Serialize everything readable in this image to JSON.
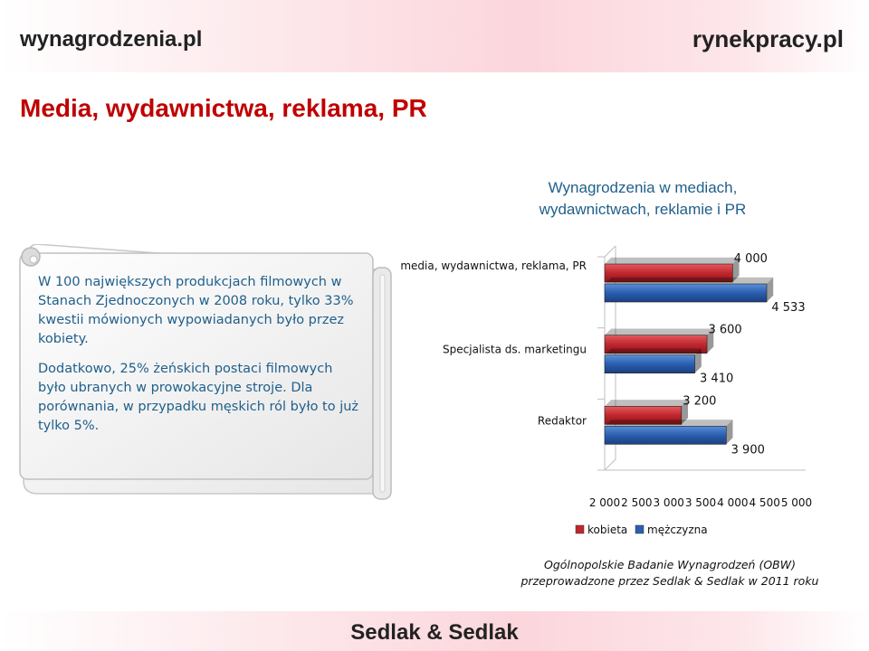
{
  "header": {
    "logo_left": "wynagrodzenia.pl",
    "logo_right": "rynekpracy.pl"
  },
  "page_title": "Media, wydawnictwa, reklama, PR",
  "scroll": {
    "paragraph1": "W 100 największych produkcjach filmowych w Stanach Zjednoczonych w 2008 roku, tylko 33% kwestii mówionych wypowiadanych było przez kobiety.",
    "paragraph2": "Dodatkowo, 25% żeńskich postaci filmowych było ubranych  w prowokacyjne stroje. Dla porównania, w przypadku męskich ról było to już tylko 5%."
  },
  "chart_data": {
    "type": "bar",
    "orientation": "horizontal",
    "title": "Wynagrodzenia w mediach, wydawnictwach, reklamie i PR",
    "categories": [
      "media, wydawnictwa, reklama, PR",
      "Specjalista ds. marketingu",
      "Redaktor"
    ],
    "series": [
      {
        "name": "kobieta",
        "values": [
          4000,
          3600,
          3200
        ],
        "labels": [
          "4 000",
          "3 600",
          "3 200"
        ],
        "color": "#c0272d"
      },
      {
        "name": "mężczyzna",
        "values": [
          4533,
          3410,
          3900
        ],
        "labels": [
          "4 533",
          "3 410",
          "3 900"
        ],
        "color": "#2a5fb0"
      }
    ],
    "xlim": [
      2000,
      5000
    ],
    "ticks": [
      "2 000",
      "2 500",
      "3 000",
      "3 500",
      "4 000",
      "4 500",
      "5 000"
    ],
    "tick_values": [
      2000,
      2500,
      3000,
      3500,
      4000,
      4500,
      5000
    ],
    "legend_position": "bottom",
    "grid": false
  },
  "source": {
    "line1": "Ogólnopolskie Badanie Wynagrodzeń (OBW)",
    "line2": "przeprowadzone przez Sedlak & Sedlak w 2011 roku"
  },
  "footer": {
    "brand": "Sedlak & Sedlak"
  }
}
